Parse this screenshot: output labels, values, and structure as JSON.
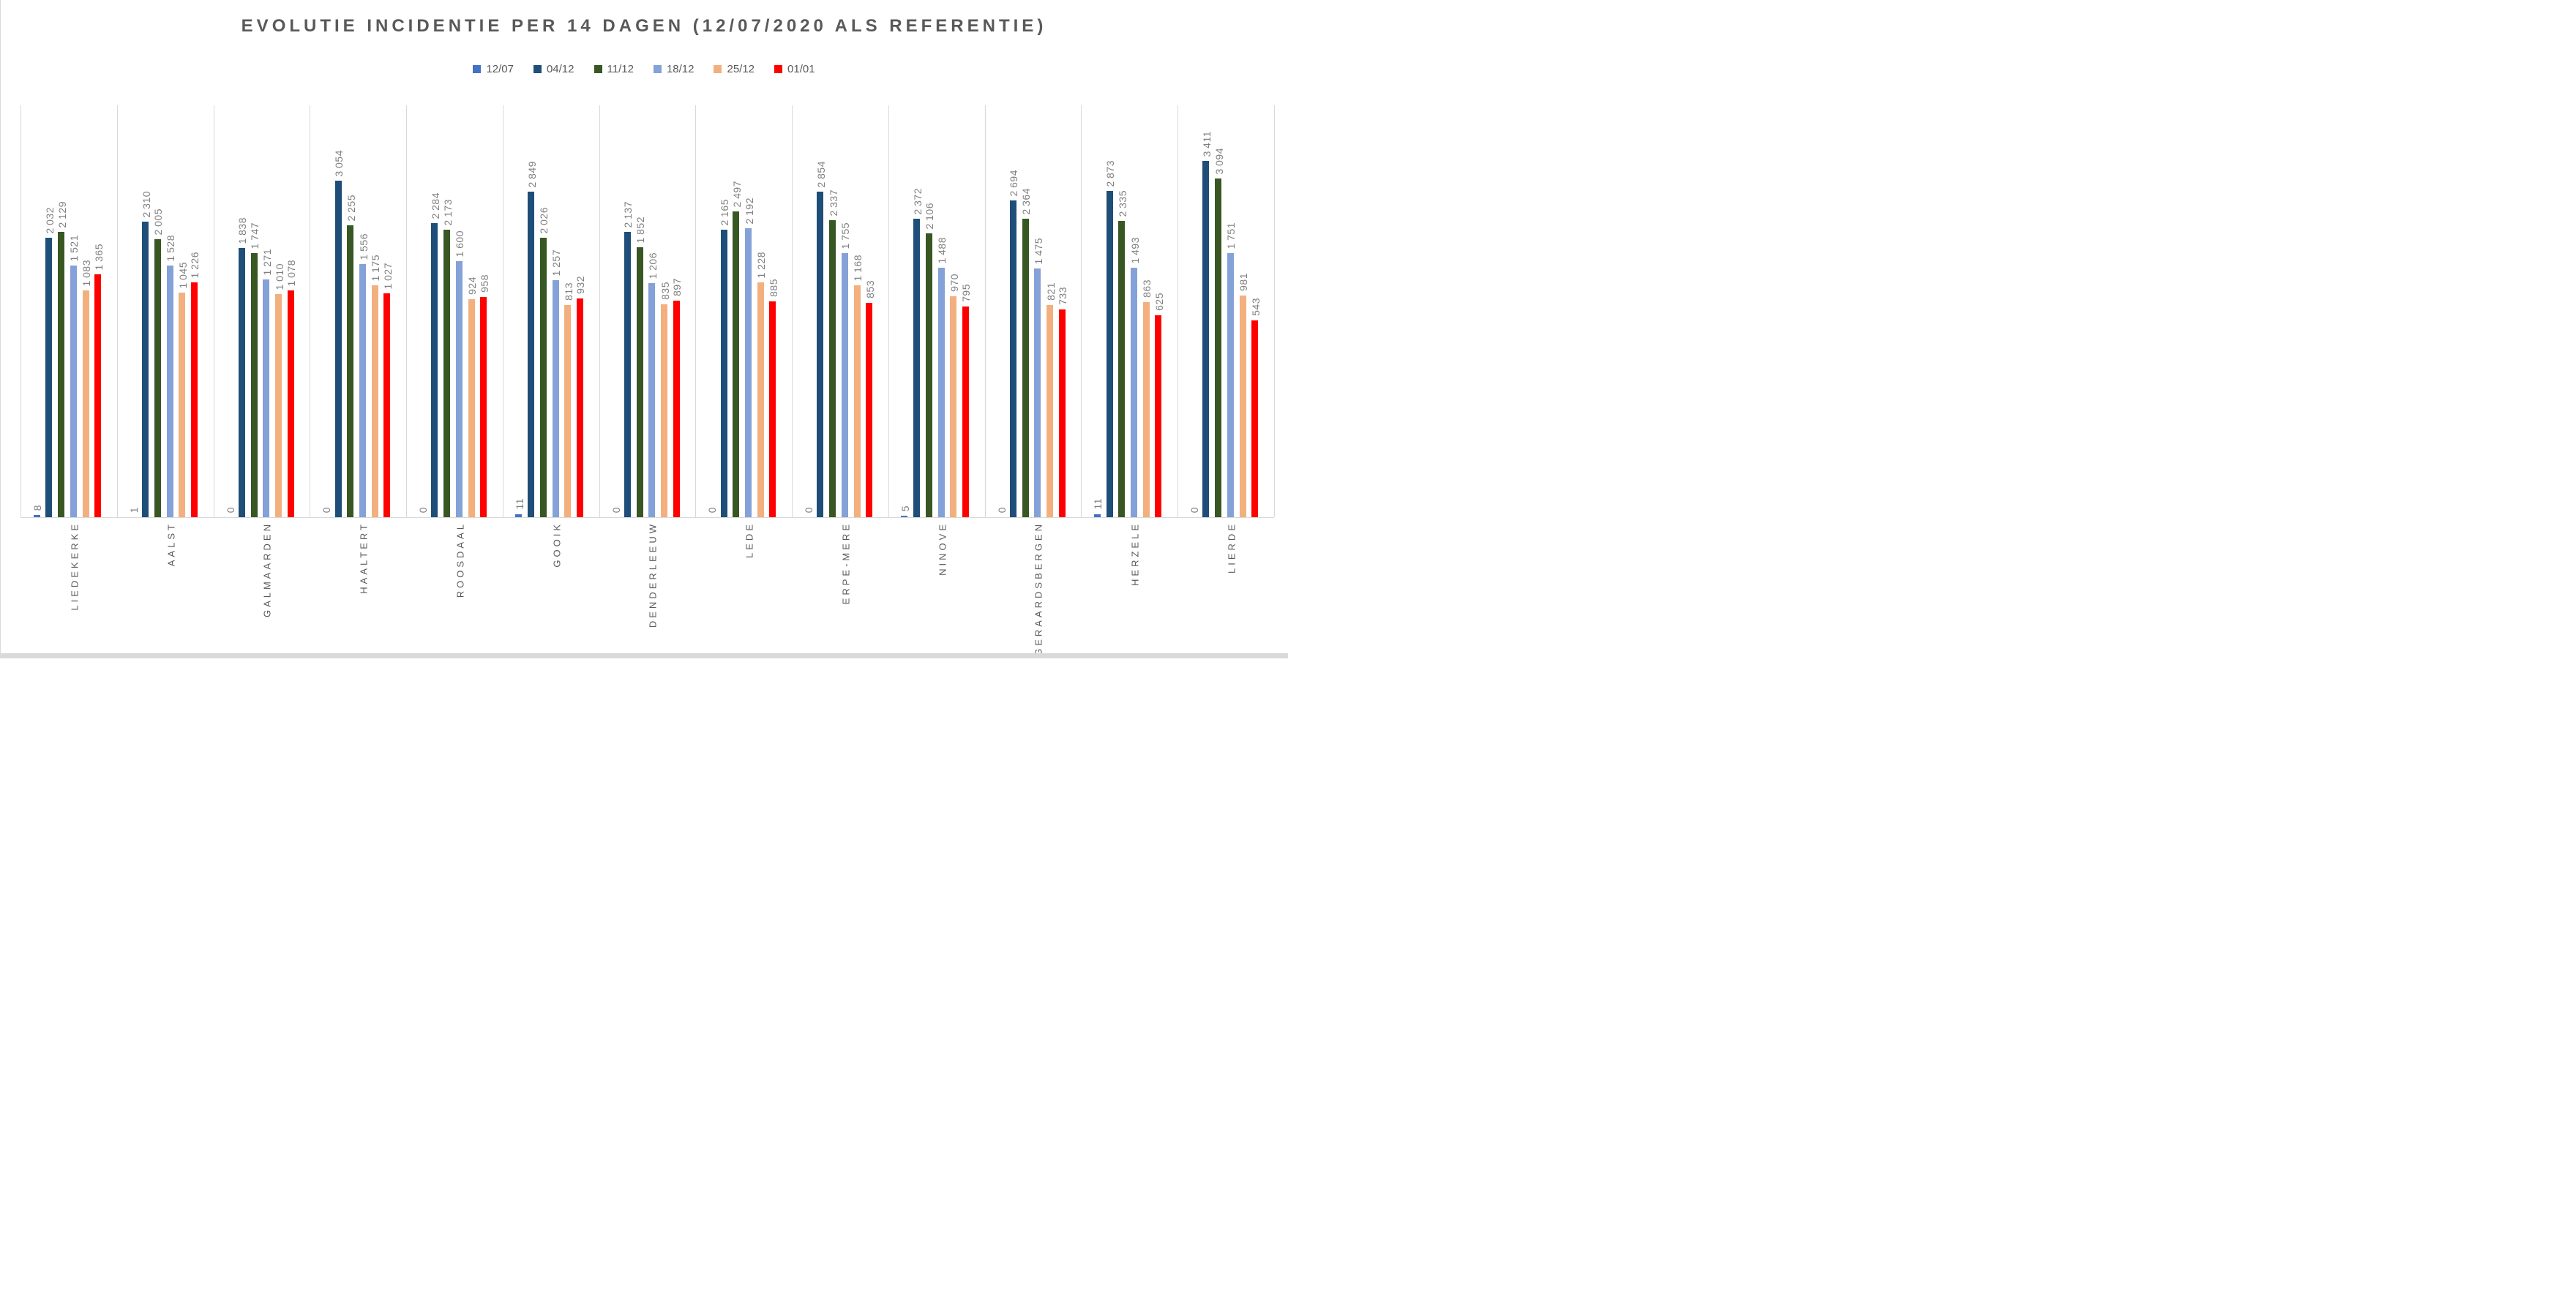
{
  "title": "EVOLUTIE INCIDENTIE PER 14 DAGEN (12/07/2020 ALS REFERENTIE)",
  "colors": {
    "title_text": "#595959",
    "value_labels": "#7f7f7f",
    "category_labels": "#595959",
    "gridlines": "#d9d9d9",
    "window_edges": "#d9d9d9"
  },
  "chart_data": {
    "type": "bar",
    "title": "EVOLUTIE INCIDENTIE PER 14 DAGEN (12/07/2020 ALS REFERENTIE)",
    "xlabel": "",
    "ylabel": "",
    "grid": "vertical-category-separators",
    "legend_position": "top-center",
    "value_labels": "rotated 90deg, above bars, thousands separated by space",
    "category_label_style": "rotated 90deg reading bottom-to-top, below axis",
    "categories": [
      "LIEDEKERKE",
      "AALST",
      "GALMAARDEN",
      "HAALTERT",
      "ROOSDAAL",
      "GOOIK",
      "DENDERLEEUW",
      "LEDE",
      "ERPE-MERE",
      "NINOVE",
      "GERAARDSBERGEN",
      "HERZELE",
      "LIERDE"
    ],
    "series": [
      {
        "name": "12/07",
        "color": "#4472c4",
        "axis": "secondary",
        "values": [
          8,
          1,
          0,
          0,
          0,
          11,
          0,
          0,
          0,
          5,
          0,
          11,
          0
        ]
      },
      {
        "name": "04/12",
        "color": "#1f4e79",
        "axis": "primary",
        "values": [
          2032,
          2310,
          1838,
          3054,
          2284,
          2849,
          2137,
          2165,
          2854,
          2372,
          2694,
          2873,
          3411
        ]
      },
      {
        "name": "11/12",
        "color": "#385723",
        "axis": "primary",
        "values": [
          2129,
          2005,
          1747,
          2255,
          2173,
          2026,
          1852,
          2497,
          2337,
          2106,
          2364,
          2335,
          3094
        ]
      },
      {
        "name": "18/12",
        "color": "#84a1d8",
        "axis": "primary",
        "values": [
          1521,
          1528,
          1271,
          1556,
          1600,
          1257,
          1206,
          2192,
          1755,
          1488,
          1475,
          1493,
          1751
        ]
      },
      {
        "name": "25/12",
        "color": "#f3b07e",
        "axis": "primary",
        "values": [
          1083,
          1045,
          1010,
          1175,
          924,
          813,
          835,
          1228,
          1168,
          970,
          821,
          863,
          981
        ]
      },
      {
        "name": "01/01",
        "color": "#ff0000",
        "axis": "primary",
        "values": [
          1365,
          1226,
          1078,
          1027,
          958,
          932,
          897,
          885,
          853,
          795,
          733,
          625,
          543
        ]
      }
    ]
  }
}
